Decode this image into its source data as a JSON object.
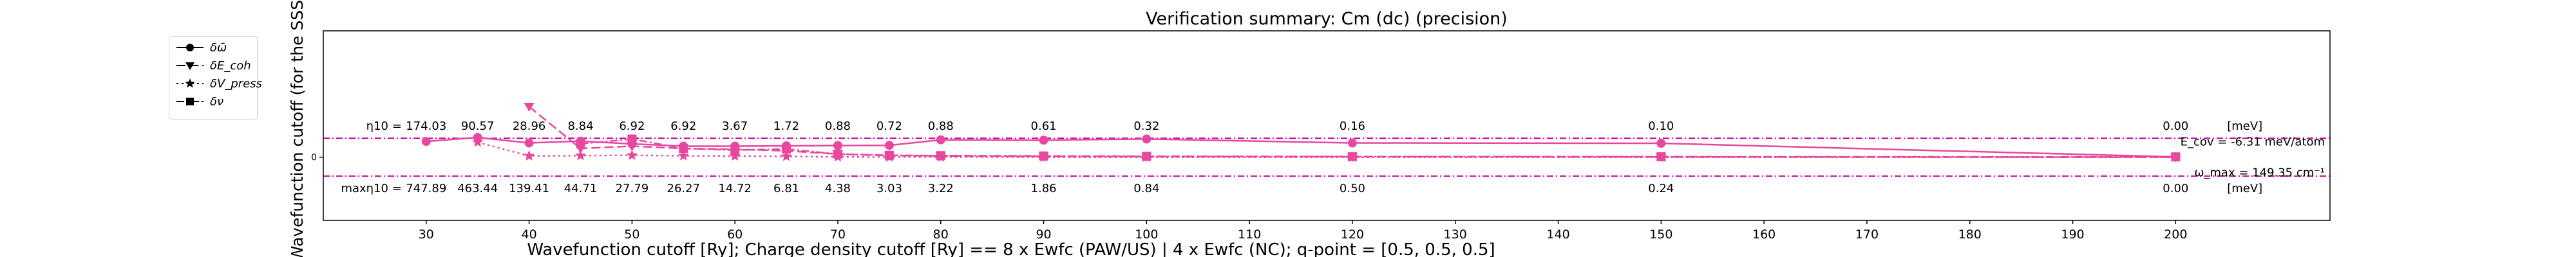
{
  "chart_data": {
    "type": "line",
    "title": "Verification summary: Cm (dc) (precision)",
    "xlabel": "Wavefunction cutoff [Ry]; Charge density cutoff [Ry] == 8 x Ewfc (PAW/US) | 4 x Ewfc (NC); q-point = [0.5, 0.5, 0.5]",
    "ylabel": "Wavefunction cutoff (for the SSSP",
    "xlim": [
      20,
      215
    ],
    "ylim": [
      -4.0,
      8.0
    ],
    "x_ticks": [
      30,
      40,
      50,
      60,
      70,
      80,
      90,
      100,
      110,
      120,
      130,
      140,
      150,
      160,
      170,
      180,
      190,
      200
    ],
    "y_ticks": [
      0
    ],
    "hlines": [
      1.2,
      -1.2
    ],
    "x": [
      30,
      35,
      40,
      45,
      50,
      55,
      60,
      65,
      70,
      75,
      80,
      90,
      100,
      120,
      150,
      200
    ],
    "series": [
      {
        "name": "δω̄",
        "marker": "circle",
        "linestyle": "solid",
        "values": [
          1.0,
          1.25,
          0.9,
          1.02,
          0.84,
          0.7,
          0.7,
          0.72,
          0.74,
          0.75,
          1.1,
          1.08,
          1.15,
          0.9,
          0.88,
          0.02
        ]
      },
      {
        "name": "δE_coh",
        "marker": "triangle",
        "linestyle": "dashed",
        "values": [
          null,
          null,
          3.2,
          0.55,
          0.7,
          0.55,
          0.5,
          0.4,
          0.2,
          0.1,
          0.08,
          0.05,
          0.04,
          0.03,
          0.02,
          0.0
        ]
      },
      {
        "name": "δV_press",
        "marker": "star",
        "linestyle": "dotted",
        "values": [
          null,
          0.95,
          0.08,
          0.1,
          0.12,
          0.09,
          0.07,
          0.05,
          0.02,
          0.01,
          0.01,
          0.0,
          0.0,
          0.0,
          0.0,
          0.0
        ]
      },
      {
        "name": "δν",
        "marker": "square",
        "linestyle": "dashdot",
        "values": [
          null,
          null,
          null,
          0.85,
          1.15,
          0.55,
          0.45,
          0.52,
          0.2,
          0.12,
          0.1,
          0.08,
          0.06,
          0.04,
          0.03,
          0.02
        ]
      }
    ],
    "eta_label": "η10 =",
    "eta_values": [
      {
        "x": 30,
        "v": "174.03"
      },
      {
        "x": 35,
        "v": "90.57"
      },
      {
        "x": 40,
        "v": "28.96"
      },
      {
        "x": 45,
        "v": "8.84"
      },
      {
        "x": 50,
        "v": "6.92"
      },
      {
        "x": 55,
        "v": "6.92"
      },
      {
        "x": 60,
        "v": "3.67"
      },
      {
        "x": 65,
        "v": "1.72"
      },
      {
        "x": 70,
        "v": "0.88"
      },
      {
        "x": 75,
        "v": "0.72"
      },
      {
        "x": 80,
        "v": "0.88"
      },
      {
        "x": 90,
        "v": "0.61"
      },
      {
        "x": 100,
        "v": "0.32"
      },
      {
        "x": 120,
        "v": "0.16"
      },
      {
        "x": 150,
        "v": "0.10"
      },
      {
        "x": 200,
        "v": "0.00"
      }
    ],
    "eta_unit": "[meV]",
    "max_label": "maxη10 =",
    "max_values": [
      {
        "x": 30,
        "v": "747.89"
      },
      {
        "x": 35,
        "v": "463.44"
      },
      {
        "x": 40,
        "v": "139.41"
      },
      {
        "x": 45,
        "v": "44.71"
      },
      {
        "x": 50,
        "v": "27.79"
      },
      {
        "x": 55,
        "v": "26.27"
      },
      {
        "x": 60,
        "v": "14.72"
      },
      {
        "x": 65,
        "v": "6.81"
      },
      {
        "x": 70,
        "v": "4.38"
      },
      {
        "x": 75,
        "v": "3.03"
      },
      {
        "x": 80,
        "v": "3.22"
      },
      {
        "x": 90,
        "v": "1.86"
      },
      {
        "x": 100,
        "v": "0.84"
      },
      {
        "x": 120,
        "v": "0.50"
      },
      {
        "x": 150,
        "v": "0.24"
      },
      {
        "x": 200,
        "v": "0.00"
      }
    ],
    "max_unit": "[meV]",
    "ecov_text": "E_cov = -6.31 meV/atom",
    "omega_text": "ω_max = 149.35 cm⁻¹",
    "legend_placement": "outside-left",
    "grid": false,
    "color": "#e8479e"
  }
}
